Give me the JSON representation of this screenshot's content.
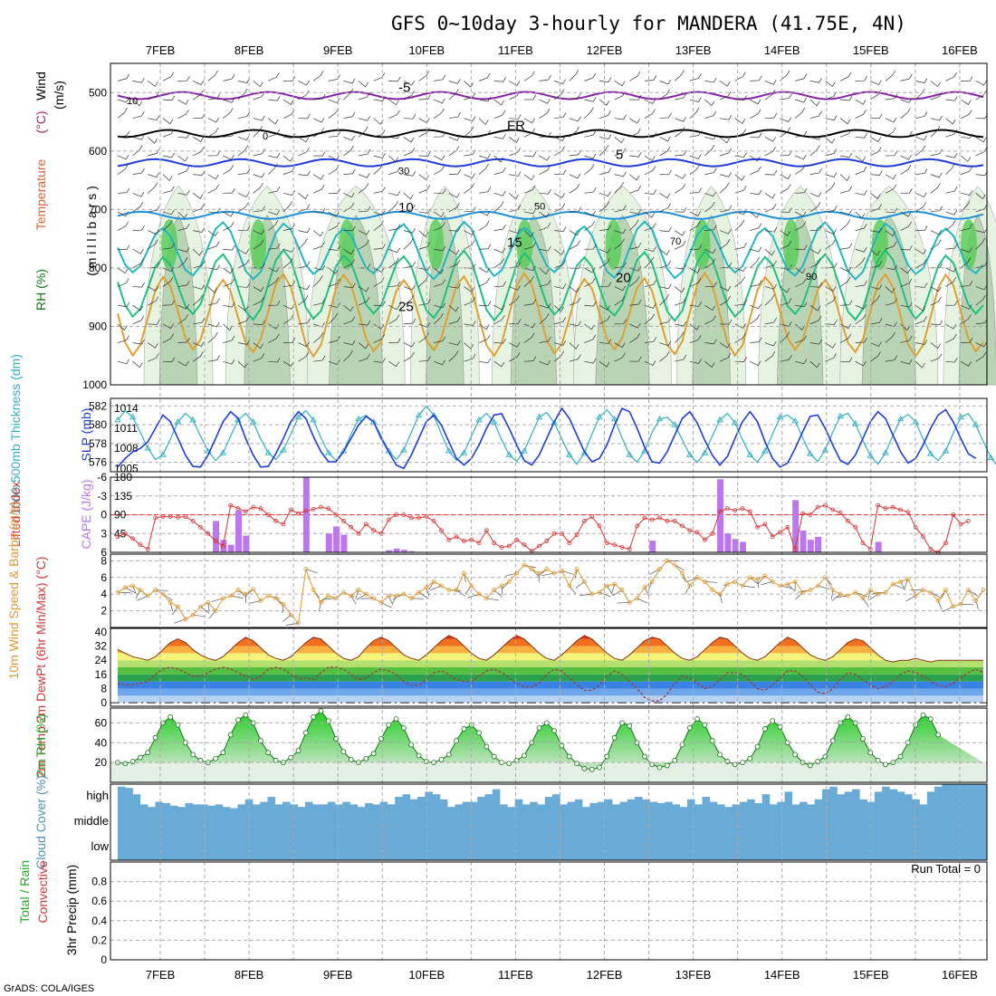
{
  "title": "GFS 0~10day 3-hourly for MANDERA (41.75E, 4N)",
  "footer": "GrADS: COLA/IGES",
  "colors": {
    "rh_light": "#e6f3e0",
    "rh_mid": "#b9d4b4",
    "rh_dark": "#8fb48f",
    "rh_green": "#55cc55",
    "slp": "#1e3cdc",
    "thickness": "#30b0c0",
    "lifted_index": "#dd3333",
    "cape": "#bb77ee",
    "wind_speed": "#dd9933",
    "temp_fill": "#ee6622",
    "dewpt_line": "#994444",
    "rh2m": "#33bb33",
    "cloud": "#6aaad6"
  },
  "chart_data": {
    "type": "meteogram",
    "dates": [
      "7FEB",
      "8FEB",
      "9FEB",
      "10FEB",
      "11FEB",
      "12FEB",
      "13FEB",
      "14FEB",
      "15FEB",
      "16FEB"
    ],
    "panels": [
      {
        "id": "upper_air",
        "ylabel_parts": [
          "RH (%)",
          "Temperature",
          "(°C)",
          "Wind",
          "(m/s)"
        ],
        "y_unit_label": "( m i l l i b a r s )",
        "y_ticks": [
          500,
          600,
          700,
          800,
          900,
          1000
        ],
        "ylim": [
          450,
          1000
        ],
        "isotherms": [
          {
            "label": "-5",
            "level": 505,
            "color": "#8822aa"
          },
          {
            "label": "FR",
            "level": 570,
            "color": "#000000"
          },
          {
            "label": "5",
            "level": 620,
            "color": "#1e3cdc"
          },
          {
            "label": "10",
            "level": 710,
            "color": "#1e90dc"
          },
          {
            "label": "15",
            "level": 770,
            "color": "#20b8c0"
          },
          {
            "label": "20",
            "level": 830,
            "color": "#20c080"
          },
          {
            "label": "25",
            "level": 880,
            "color": "#e0a030"
          }
        ],
        "rh_contour_labels": [
          "10",
          "0",
          "30",
          "50",
          "70",
          "90"
        ]
      },
      {
        "id": "thickness_slp",
        "ylabel_left": "1000-500mb Thickness (dm)",
        "ylabel_right": "SLP (mb)",
        "left_ticks": [
          576,
          578,
          580,
          582
        ],
        "right_ticks": [
          1005,
          1008,
          1011,
          1014
        ],
        "thickness": [
          580.5,
          581.5,
          580.8,
          579.2,
          577.5,
          576.3,
          576.8,
          578.5,
          580.3,
          581.2,
          580.5,
          578.8,
          577.2,
          576.2,
          577.0,
          578.8,
          580.5,
          581.2,
          580.3,
          578.5,
          577.0,
          576.3,
          577.3,
          579.0,
          580.8,
          581.5,
          580.5,
          578.6,
          577.0,
          576.2,
          577.2,
          579.0,
          580.6,
          581.0,
          580.3,
          578.8,
          577.2,
          576.3,
          577.3,
          579.2,
          581.0,
          582.0,
          581.0,
          579.0,
          577.2,
          576.2,
          577.0,
          578.8,
          580.5,
          581.2,
          580.3,
          578.4,
          576.8,
          576.1,
          577.2,
          579.0,
          580.8,
          581.3,
          580.2,
          578.5,
          576.8,
          575.8,
          577.0,
          579.0,
          580.8,
          581.6,
          580.6,
          578.6,
          576.8,
          576.0,
          577.2,
          579.2,
          580.6,
          580.8,
          580.0,
          578.4,
          576.8,
          576.0,
          577.0,
          578.8,
          580.5,
          581.2,
          580.2,
          578.4,
          576.8,
          576.0,
          577.2,
          579.0,
          580.8,
          581.0,
          580.4,
          578.6,
          576.9,
          576.1,
          577.3,
          579.2,
          580.9,
          581.2,
          580.1,
          578.3,
          576.7,
          575.8,
          577.0,
          578.9,
          580.6,
          581.1,
          580.3,
          578.5,
          576.9,
          576.2,
          577.2,
          579.1,
          580.8,
          581.2,
          580.0,
          578.2,
          576.5,
          575.5,
          576.5
        ],
        "slp": [
          1005.2,
          1006.5,
          1007.5,
          1008.0,
          1009.0,
          1011.0,
          1013.0,
          1012.0,
          1009.5,
          1007.0,
          1005.3,
          1005.2,
          1007.0,
          1009.5,
          1012.0,
          1013.5,
          1012.5,
          1009.5,
          1007.0,
          1005.2,
          1005.3,
          1007.2,
          1009.5,
          1012.0,
          1013.5,
          1012.5,
          1009.8,
          1007.5,
          1006.0,
          1006.0,
          1007.5,
          1009.5,
          1011.5,
          1012.8,
          1012.0,
          1009.5,
          1007.5,
          1005.5,
          1005.0,
          1007.0,
          1009.5,
          1012.0,
          1013.0,
          1011.5,
          1009.0,
          1006.5,
          1005.5,
          1006.5,
          1008.5,
          1011.0,
          1013.0,
          1013.2,
          1011.0,
          1008.5,
          1006.2,
          1005.5,
          1007.0,
          1009.5,
          1012.0,
          1014.0,
          1012.5,
          1010.0,
          1007.5,
          1006.0,
          1006.5,
          1008.5,
          1011.5,
          1014.0,
          1013.5,
          1011.0,
          1008.2,
          1006.0,
          1005.8,
          1007.5,
          1010.0,
          1012.5,
          1013.5,
          1011.8,
          1009.2,
          1007.0,
          1005.5,
          1006.8,
          1009.5,
          1012.0,
          1013.5,
          1012.0,
          1009.0,
          1006.5,
          1005.2,
          1005.8,
          1008.0,
          1010.5,
          1012.8,
          1013.0,
          1011.0,
          1008.5,
          1006.2,
          1005.6,
          1007.0,
          1009.5,
          1012.0,
          1013.5,
          1012.5,
          1010.0,
          1007.5,
          1005.8,
          1006.5,
          1008.5,
          1011.0,
          1013.0,
          1013.8,
          1012.0,
          1009.5,
          1007.2,
          1006.5
        ]
      },
      {
        "id": "lifted_index_cape",
        "ylabel_left": "Lifted Index",
        "ylabel_right": "CAPE (J/kg)",
        "left_ticks": [
          -6,
          -3,
          0,
          3,
          6
        ],
        "right_ticks": [
          45,
          90,
          135,
          180
        ],
        "lifted_index": [
          3.5,
          3.0,
          3.8,
          4.8,
          5.5,
          0.5,
          0.3,
          0.3,
          0.4,
          0.3,
          1.0,
          2.0,
          3.0,
          4.2,
          5.0,
          -1.5,
          -1.0,
          -0.5,
          -1.2,
          -1.0,
          0.0,
          1.0,
          1.5,
          -0.8,
          -0.2,
          -0.6,
          -0.9,
          -1.2,
          -1.0,
          0.0,
          1.0,
          2.0,
          3.0,
          1.5,
          2.5,
          3.0,
          0.8,
          0.0,
          0.0,
          0.5,
          0.5,
          0.3,
          1.0,
          2.5,
          4.0,
          3.5,
          4.2,
          4.0,
          4.5,
          2.5,
          4.5,
          5.2,
          5.0,
          4.0,
          4.8,
          5.8,
          5.0,
          4.2,
          3.0,
          3.0,
          4.5,
          3.2,
          1.0,
          0.3,
          1.8,
          4.5,
          4.8,
          5.2,
          5.5,
          1.8,
          0.5,
          0.8,
          0.5,
          1.0,
          1.0,
          1.8,
          2.5,
          2.8,
          4.0,
          3.0,
          -0.5,
          -1.0,
          -0.7,
          -1.0,
          -0.5,
          2.0,
          1.5,
          3.5,
          2.8,
          2.0,
          5.5,
          -0.2,
          0.0,
          -1.2,
          -1.5,
          -0.8,
          -0.3,
          1.0,
          2.0,
          4.5,
          5.5,
          -1.5,
          -1.0,
          -1.2,
          -0.8,
          -0.4,
          2.0,
          3.5,
          5.5,
          6.0,
          4.5,
          0.0,
          1.5,
          1.0
        ],
        "cape_bars": [
          [
            8,
            1
          ],
          [
            13,
            75
          ],
          [
            14,
            30
          ],
          [
            15,
            18
          ],
          [
            16,
            100
          ],
          [
            17,
            40
          ],
          [
            25,
            180
          ],
          [
            28,
            45
          ],
          [
            29,
            62
          ],
          [
            30,
            42
          ],
          [
            36,
            5
          ],
          [
            37,
            9
          ],
          [
            38,
            6
          ],
          [
            39,
            3
          ],
          [
            71,
            28
          ],
          [
            80,
            175
          ],
          [
            81,
            45
          ],
          [
            82,
            32
          ],
          [
            83,
            25
          ],
          [
            90,
            125
          ],
          [
            91,
            52
          ],
          [
            92,
            30
          ],
          [
            93,
            37
          ],
          [
            101,
            25
          ]
        ]
      },
      {
        "id": "wind10m",
        "ylabel": "10m Wind Speed & Barbs (m/s)",
        "y_ticks": [
          2,
          4,
          6,
          8
        ],
        "ylim": [
          0,
          8.8
        ],
        "speed": [
          4.2,
          4.8,
          5.0,
          4.5,
          3.8,
          4.5,
          4.0,
          3.0,
          2.5,
          1.0,
          1.5,
          2.5,
          3.0,
          2.0,
          3.5,
          3.8,
          4.5,
          4.0,
          4.6,
          3.2,
          3.8,
          3.5,
          2.8,
          1.5,
          0.5,
          7.0,
          4.5,
          3.0,
          3.8,
          3.5,
          4.2,
          3.8,
          4.5,
          4.0,
          3.5,
          3.0,
          3.8,
          3.8,
          4.0,
          3.5,
          4.2,
          4.8,
          5.5,
          5.0,
          4.5,
          4.5,
          6.5,
          5.0,
          4.0,
          3.5,
          4.5,
          5.0,
          5.5,
          6.5,
          7.5,
          7.0,
          6.5,
          7.0,
          6.5,
          6.8,
          5.0,
          7.0,
          5.5,
          4.0,
          4.2,
          5.0,
          5.2,
          4.5,
          3.0,
          3.5,
          4.8,
          5.5,
          7.0,
          8.0,
          7.5,
          6.5,
          5.0,
          6.0,
          5.5,
          4.5,
          4.0,
          5.2,
          5.5,
          5.0,
          6.0,
          5.8,
          6.2,
          5.5,
          5.0,
          5.2,
          5.5,
          4.2,
          4.5,
          5.0,
          6.0,
          4.5,
          4.0,
          3.8,
          4.2,
          3.5,
          4.5,
          4.0,
          4.2,
          5.2,
          5.5,
          5.8,
          3.8,
          4.5,
          4.2,
          3.2,
          4.5,
          2.5,
          2.8,
          4.5,
          3.2,
          4.5
        ]
      },
      {
        "id": "temp2m",
        "ylabel": "2m Temp 2m DewPt (6hr Min/Max) (°C)",
        "y_ticks": [
          0,
          8,
          16,
          24,
          32,
          40
        ],
        "ylim": [
          0,
          40
        ],
        "temperature": [
          30,
          28,
          26,
          25,
          24,
          26,
          30,
          34,
          36,
          34,
          30,
          27,
          25,
          24,
          26,
          30,
          34,
          37,
          35,
          31,
          27,
          25,
          24,
          26,
          30,
          34,
          37,
          36,
          32,
          28,
          25,
          24,
          26,
          31,
          35,
          37,
          35,
          31,
          27,
          25,
          24,
          27,
          31,
          35,
          38,
          36,
          32,
          28,
          25,
          24,
          27,
          31,
          35,
          38,
          36,
          32,
          28,
          25,
          24,
          27,
          31,
          35,
          38,
          36,
          32,
          28,
          25,
          24,
          27,
          31,
          35,
          37,
          36,
          32,
          28,
          25,
          24,
          26,
          30,
          34,
          37,
          36,
          32,
          28,
          25,
          24,
          26,
          30,
          34,
          37,
          35,
          31,
          27,
          25,
          24,
          26,
          30,
          34,
          36,
          35,
          31,
          27,
          24,
          23,
          24,
          24,
          25,
          24,
          23,
          24,
          24,
          24,
          24,
          24,
          24,
          24
        ],
        "dewpoint": [
          11,
          10,
          10,
          11,
          12,
          16,
          19,
          20,
          19,
          17,
          15,
          15,
          17,
          19,
          20,
          19,
          17,
          15,
          13,
          15,
          19,
          20,
          19,
          16,
          14,
          14,
          13,
          17,
          20,
          20,
          19,
          16,
          13,
          14,
          17,
          19,
          18,
          16,
          12,
          10,
          10,
          13,
          17,
          18,
          16,
          13,
          12,
          12,
          15,
          18,
          19,
          17,
          14,
          11,
          9,
          9,
          11,
          16,
          19,
          18,
          14,
          10,
          7,
          7,
          10,
          15,
          18,
          16,
          12,
          8,
          3,
          1,
          1,
          5,
          11,
          15,
          14,
          11,
          8,
          9,
          13,
          17,
          17,
          16,
          12,
          8,
          7,
          10,
          14,
          18,
          18,
          15,
          10,
          6,
          5,
          8,
          13,
          17,
          16,
          13,
          10,
          8,
          9,
          12,
          16,
          18,
          17,
          15,
          12,
          10,
          9,
          11,
          14,
          17,
          19,
          17
        ]
      },
      {
        "id": "rh2m",
        "ylabel": "2m RH (%)",
        "y_ticks": [
          20,
          40,
          60
        ],
        "ylim": [
          0,
          75
        ],
        "rh": [
          20,
          19,
          21,
          25,
          30,
          45,
          60,
          66,
          58,
          40,
          28,
          22,
          20,
          24,
          30,
          48,
          63,
          68,
          60,
          42,
          30,
          22,
          20,
          25,
          32,
          50,
          66,
          72,
          62,
          44,
          31,
          23,
          20,
          24,
          29,
          44,
          58,
          64,
          55,
          38,
          27,
          21,
          20,
          23,
          28,
          42,
          54,
          58,
          50,
          36,
          26,
          20,
          19,
          22,
          27,
          40,
          55,
          60,
          52,
          37,
          26,
          19,
          14,
          13,
          15,
          26,
          45,
          60,
          57,
          40,
          26,
          18,
          15,
          17,
          22,
          38,
          55,
          64,
          58,
          42,
          28,
          21,
          18,
          20,
          24,
          36,
          54,
          62,
          56,
          40,
          28,
          20,
          17,
          21,
          26,
          42,
          60,
          66,
          60,
          44,
          30,
          22,
          18,
          20,
          26,
          40,
          58,
          68,
          64,
          48
        ]
      },
      {
        "id": "cloud",
        "ylabel": "Cloud Cover (%)",
        "levels": [
          "high",
          "middle",
          "low"
        ],
        "high": [
          90,
          85,
          60,
          20,
          10,
          30,
          25,
          15,
          10,
          25,
          20,
          20,
          15,
          20,
          10,
          5,
          20,
          40,
          20,
          30,
          50,
          20,
          30,
          20,
          10,
          30,
          20,
          20,
          30,
          20,
          30,
          20,
          10,
          25,
          20,
          30,
          20,
          50,
          60,
          40,
          50,
          70,
          60,
          40,
          10,
          20,
          30,
          30,
          50,
          60,
          80,
          20,
          10,
          40,
          20,
          30,
          20,
          50,
          60,
          20,
          30,
          40,
          10,
          25,
          30,
          40,
          20,
          30,
          40,
          50,
          40,
          30,
          25,
          30,
          20,
          10,
          40,
          20,
          50,
          30,
          20,
          10,
          20,
          30,
          40,
          25,
          60,
          20,
          30,
          70,
          20,
          30,
          20,
          40,
          80,
          90,
          60,
          70,
          80,
          40,
          30,
          70,
          90,
          80,
          70,
          60,
          40,
          20,
          70,
          90,
          100,
          100,
          100,
          100,
          100,
          100
        ],
        "middle": 100,
        "low": 100
      },
      {
        "id": "precip",
        "ylabel_parts": [
          "Total / Rain",
          "Convective"
        ],
        "ylabel_units": "3hr Precip (mm)",
        "y_ticks": [
          0,
          0.2,
          0.4,
          0.6,
          0.8
        ],
        "ylim": [
          0,
          1
        ],
        "run_total_label": "Run Total = 0",
        "values": []
      }
    ]
  }
}
